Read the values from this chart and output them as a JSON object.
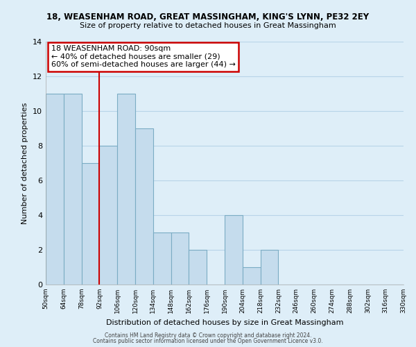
{
  "title1": "18, WEASENHAM ROAD, GREAT MASSINGHAM, KING'S LYNN, PE32 2EY",
  "title2": "Size of property relative to detached houses in Great Massingham",
  "xlabel": "Distribution of detached houses by size in Great Massingham",
  "ylabel": "Number of detached properties",
  "bin_labels": [
    "50sqm",
    "64sqm",
    "78sqm",
    "92sqm",
    "106sqm",
    "120sqm",
    "134sqm",
    "148sqm",
    "162sqm",
    "176sqm",
    "190sqm",
    "204sqm",
    "218sqm",
    "232sqm",
    "246sqm",
    "260sqm",
    "274sqm",
    "288sqm",
    "302sqm",
    "316sqm",
    "330sqm"
  ],
  "bin_left_edges": [
    50,
    64,
    78,
    92,
    106,
    120,
    134,
    148,
    162,
    176,
    190,
    204,
    218,
    232,
    246,
    260,
    274,
    288,
    302,
    316
  ],
  "counts": [
    11,
    11,
    7,
    8,
    11,
    9,
    3,
    3,
    2,
    0,
    4,
    1,
    2,
    0,
    0,
    0,
    0,
    0,
    0,
    0
  ],
  "bar_fill_color": "#c5dced",
  "bar_edge_color": "#7bacc4",
  "property_line_x": 92,
  "property_line_color": "#cc0000",
  "annotation_title": "18 WEASENHAM ROAD: 90sqm",
  "annotation_line1": "← 40% of detached houses are smaller (29)",
  "annotation_line2": "60% of semi-detached houses are larger (44) →",
  "annotation_box_color": "#ffffff",
  "annotation_box_edge": "#cc0000",
  "ylim": [
    0,
    14
  ],
  "yticks": [
    0,
    2,
    4,
    6,
    8,
    10,
    12,
    14
  ],
  "x_min": 50,
  "x_max": 330,
  "bin_width": 14,
  "footer1": "Contains HM Land Registry data © Crown copyright and database right 2024.",
  "footer2": "Contains public sector information licensed under the Open Government Licence v3.0.",
  "background_color": "#deeef8",
  "plot_bg_color": "#deeef8",
  "grid_color": "#b8d4e8",
  "title_fontsize": 8.5,
  "subtitle_fontsize": 8,
  "axis_label_fontsize": 8,
  "tick_fontsize": 6.5,
  "annotation_fontsize": 8
}
